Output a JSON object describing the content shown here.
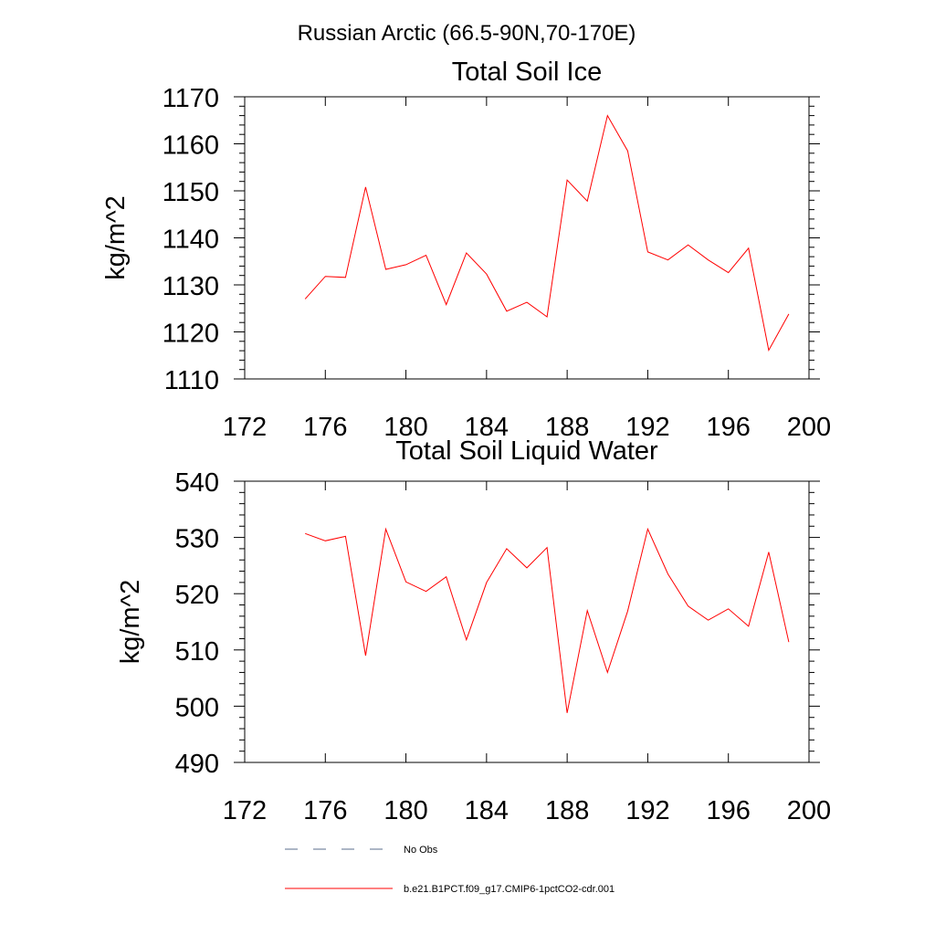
{
  "figure": {
    "supertitle": "Russian Arctic (66.5-90N,70-170E)"
  },
  "chart_data": [
    {
      "type": "line",
      "title": "Total Soil Ice",
      "xlabel": "",
      "ylabel": "kg/m^2",
      "xlim": [
        172,
        200
      ],
      "ylim": [
        1110,
        1170
      ],
      "x_ticks": [
        172,
        176,
        180,
        184,
        188,
        192,
        196,
        200
      ],
      "y_ticks": [
        1110,
        1120,
        1130,
        1140,
        1150,
        1160,
        1170
      ],
      "grid": false,
      "series": [
        {
          "name": "b.e21.B1PCT.f09_g17.CMIP6-1pctCO2-cdr.001",
          "color": "#ff0000",
          "x": [
            175,
            176,
            177,
            178,
            179,
            180,
            181,
            182,
            183,
            184,
            185,
            186,
            187,
            188,
            189,
            190,
            191,
            192,
            193,
            194,
            195,
            196,
            197,
            198,
            199
          ],
          "values": [
            1127.0,
            1131.8,
            1131.6,
            1150.8,
            1133.3,
            1134.3,
            1136.3,
            1125.8,
            1136.8,
            1132.3,
            1124.4,
            1126.3,
            1123.2,
            1152.3,
            1147.8,
            1166.0,
            1158.5,
            1137.0,
            1135.3,
            1138.5,
            1135.3,
            1132.6,
            1137.8,
            1116.1,
            1123.8
          ]
        }
      ]
    },
    {
      "type": "line",
      "title": "Total Soil Liquid Water",
      "xlabel": "",
      "ylabel": "kg/m^2",
      "xlim": [
        172,
        200
      ],
      "ylim": [
        490,
        540
      ],
      "x_ticks": [
        172,
        176,
        180,
        184,
        188,
        192,
        196,
        200
      ],
      "y_ticks": [
        490,
        500,
        510,
        520,
        530,
        540
      ],
      "grid": false,
      "series": [
        {
          "name": "b.e21.B1PCT.f09_g17.CMIP6-1pctCO2-cdr.001",
          "color": "#ff0000",
          "x": [
            175,
            176,
            177,
            178,
            179,
            180,
            181,
            182,
            183,
            184,
            185,
            186,
            187,
            188,
            189,
            190,
            191,
            192,
            193,
            194,
            195,
            196,
            197,
            198,
            199
          ],
          "values": [
            530.7,
            529.4,
            530.2,
            509.0,
            531.5,
            522.1,
            520.4,
            523.0,
            511.8,
            522.0,
            528.0,
            524.6,
            528.2,
            498.8,
            517.0,
            506.0,
            516.9,
            531.5,
            523.5,
            517.8,
            515.3,
            517.3,
            514.2,
            527.4,
            511.4
          ]
        }
      ]
    }
  ],
  "legend": {
    "placement": "bottom-left",
    "items": [
      {
        "label": "No Obs",
        "style": "dashed",
        "color": "#5a6e8c"
      },
      {
        "label": "b.e21.B1PCT.f09_g17.CMIP6-1pctCO2-cdr.001",
        "style": "solid",
        "color": "#ff0000"
      }
    ]
  }
}
